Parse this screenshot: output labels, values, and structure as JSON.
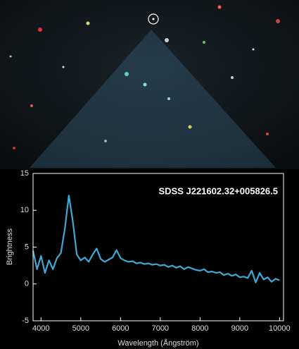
{
  "chart_data": {
    "type": "line",
    "title": "SDSS J221602.32+005826.5",
    "x_label": "Wavelength (Ångström)",
    "y_label": "Brightness",
    "x": [
      3800,
      3900,
      4000,
      4100,
      4200,
      4300,
      4400,
      4500,
      4600,
      4700,
      4800,
      4900,
      5000,
      5100,
      5200,
      5300,
      5400,
      5500,
      5600,
      5700,
      5800,
      5900,
      6000,
      6100,
      6200,
      6300,
      6400,
      6500,
      6600,
      6700,
      6800,
      6900,
      7000,
      7100,
      7200,
      7300,
      7400,
      7500,
      7600,
      7700,
      7800,
      7900,
      8000,
      8100,
      8200,
      8300,
      8400,
      8500,
      8600,
      8700,
      8800,
      8900,
      9000,
      9100,
      9200,
      9300,
      9400,
      9500,
      9600,
      9700,
      9800,
      9900,
      10000
    ],
    "values": [
      4.5,
      2.0,
      3.8,
      1.5,
      3.2,
      2.0,
      3.5,
      4.2,
      7.5,
      12.0,
      8.5,
      4.0,
      3.2,
      3.6,
      3.0,
      4.0,
      4.8,
      3.4,
      3.0,
      3.3,
      3.6,
      4.6,
      3.5,
      3.2,
      3.0,
      3.1,
      2.8,
      2.9,
      2.7,
      2.8,
      2.6,
      2.7,
      2.5,
      2.6,
      2.3,
      2.5,
      2.2,
      2.4,
      2.0,
      2.3,
      2.1,
      1.9,
      1.8,
      2.0,
      1.6,
      1.7,
      1.5,
      1.6,
      1.2,
      1.4,
      1.1,
      1.3,
      0.9,
      1.0,
      0.8,
      1.8,
      0.2,
      1.5,
      0.6,
      0.9,
      0.3,
      0.7,
      0.5
    ],
    "color": "#3fa9d6",
    "xlim": [
      3800,
      10100
    ],
    "xticks": [
      4000,
      5000,
      6000,
      7000,
      8000,
      9000,
      10000
    ],
    "ylim": [
      -5,
      15
    ],
    "yticks": [
      -5,
      0,
      5,
      10,
      15
    ]
  }
}
